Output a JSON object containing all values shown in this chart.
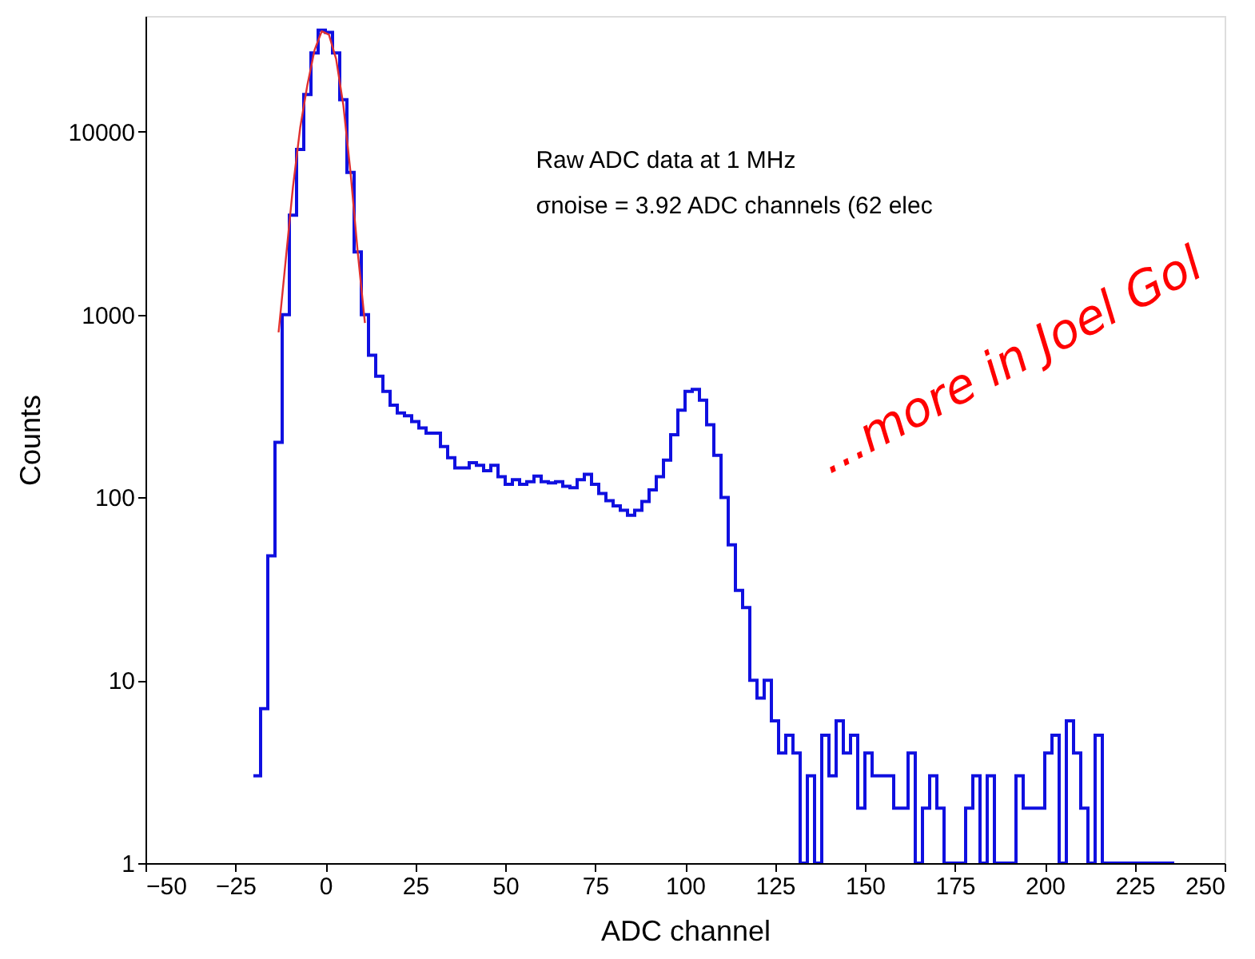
{
  "chart_data": {
    "type": "histogram",
    "xlabel": "ADC channel",
    "ylabel": "Counts",
    "xlim": [
      -50,
      250
    ],
    "xticks": [
      -50,
      -25,
      0,
      25,
      50,
      75,
      100,
      125,
      150,
      175,
      200,
      225,
      250
    ],
    "ylim": [
      1,
      43000
    ],
    "yticks": [
      1,
      10,
      100,
      1000,
      10000
    ],
    "log": true,
    "grid": false,
    "annotations": [
      "Raw ADC data at 1 MHz",
      "σnoise = 3.92 ADC channels (62 elec",
      "...more in Joel Gol"
    ],
    "series": [
      {
        "color": "#1010e0",
        "bins": [
          -20,
          -18,
          -16,
          -14,
          -12,
          -10,
          -8,
          -6,
          -4,
          -2,
          0,
          2,
          4,
          6,
          8,
          10,
          12,
          14,
          16,
          18,
          20,
          22,
          24,
          26,
          28,
          30,
          32,
          34,
          36,
          38,
          40,
          42,
          44,
          46,
          48,
          50,
          52,
          54,
          56,
          58,
          60,
          62,
          64,
          66,
          68,
          70,
          72,
          74,
          76,
          78,
          80,
          82,
          84,
          86,
          88,
          90,
          92,
          94,
          96,
          98,
          100,
          102,
          104,
          106,
          108,
          110,
          112,
          114,
          116,
          118,
          120,
          122,
          124,
          126,
          128,
          130,
          132,
          134,
          136,
          138,
          140,
          142,
          144,
          146,
          148,
          150,
          152,
          154,
          156,
          158,
          160,
          162,
          164,
          166,
          168,
          170,
          172,
          174,
          176,
          178,
          180,
          182,
          184,
          186,
          188,
          190,
          192,
          194,
          196,
          198,
          200,
          202,
          204,
          206,
          208,
          210,
          212,
          214,
          216,
          218,
          220,
          222,
          224,
          226,
          228,
          230,
          232,
          234,
          236
        ],
        "values": [
          3,
          7,
          48,
          200,
          1000,
          3500,
          8000,
          16000,
          27000,
          36000,
          35000,
          27000,
          15000,
          6000,
          2200,
          1000,
          600,
          460,
          380,
          320,
          290,
          280,
          260,
          240,
          225,
          225,
          190,
          165,
          145,
          145,
          155,
          150,
          140,
          150,
          130,
          118,
          125,
          118,
          122,
          131,
          122,
          120,
          122,
          115,
          113,
          125,
          134,
          118,
          105,
          96,
          90,
          85,
          80,
          85,
          95,
          110,
          130,
          160,
          220,
          300,
          380,
          390,
          340,
          250,
          170,
          100,
          55,
          31,
          25,
          10,
          8,
          10,
          6,
          4,
          5,
          4,
          1,
          3,
          1,
          5,
          3,
          6,
          4,
          5,
          2,
          4,
          3,
          3,
          3,
          2,
          2,
          4,
          1,
          2,
          3,
          2,
          1,
          1,
          1,
          2,
          3,
          1,
          3,
          1,
          1,
          1,
          3,
          2,
          2,
          2,
          4,
          5,
          1,
          6,
          4,
          2,
          1,
          5,
          1,
          1,
          1,
          1,
          1,
          1,
          1,
          1,
          1,
          1
        ]
      },
      {
        "type": "line",
        "color": "#e03030",
        "x": [
          -13,
          -11,
          -9,
          -7,
          -5,
          -3,
          -1,
          1,
          3,
          5,
          7,
          9,
          11
        ],
        "values": [
          800,
          2000,
          5000,
          10500,
          18000,
          28000,
          35500,
          34000,
          25000,
          14000,
          6000,
          2200,
          900
        ]
      }
    ]
  }
}
